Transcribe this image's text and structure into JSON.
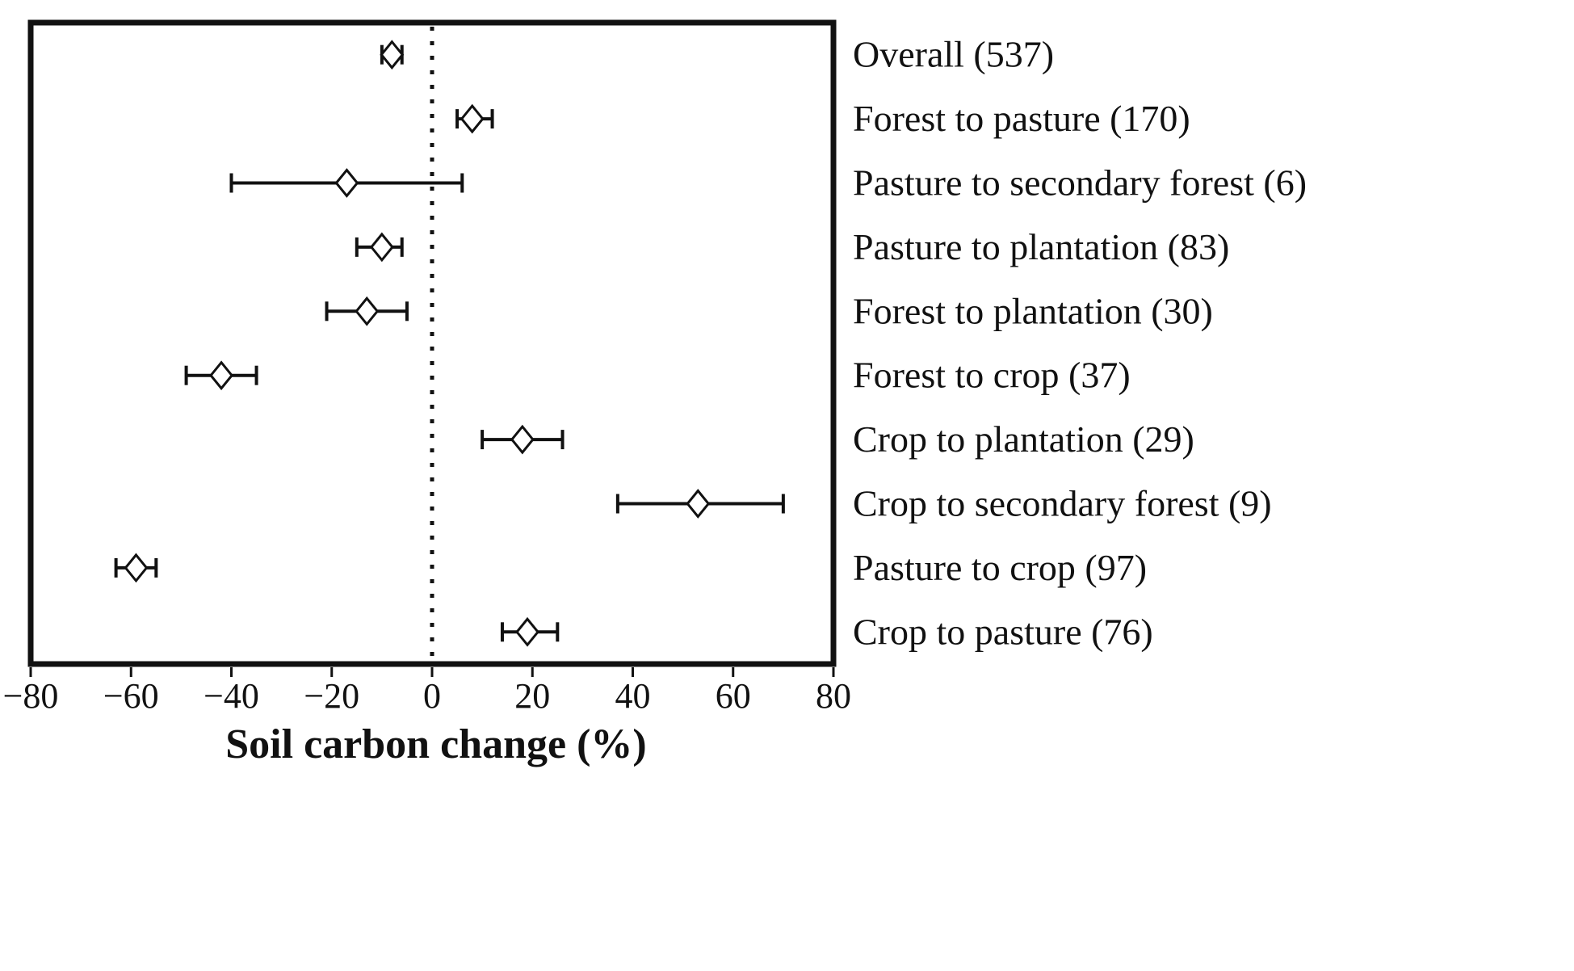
{
  "chart_data": {
    "type": "scatter",
    "subtype": "forest-plot-with-error-bars",
    "title": "",
    "xlabel": "Soil carbon change (%)",
    "ylabel": "",
    "xlim": [
      -80,
      80
    ],
    "x_ticks": [
      -80,
      -60,
      -40,
      -20,
      0,
      20,
      40,
      60,
      80
    ],
    "reference_line_x": 0,
    "grid": false,
    "legend": "none",
    "marker": "open-diamond",
    "colors": {
      "foreground": "#111111",
      "background": "#ffffff"
    },
    "series": [
      {
        "label": "Overall (537)",
        "value": -8,
        "ci_low": -10,
        "ci_high": -6
      },
      {
        "label": "Forest to pasture (170)",
        "value": 8,
        "ci_low": 5,
        "ci_high": 12
      },
      {
        "label": "Pasture to secondary forest (6)",
        "value": -17,
        "ci_low": -40,
        "ci_high": 6
      },
      {
        "label": "Pasture to plantation (83)",
        "value": -10,
        "ci_low": -15,
        "ci_high": -6
      },
      {
        "label": "Forest to plantation (30)",
        "value": -13,
        "ci_low": -21,
        "ci_high": -5
      },
      {
        "label": "Forest to crop (37)",
        "value": -42,
        "ci_low": -49,
        "ci_high": -35
      },
      {
        "label": "Crop to plantation (29)",
        "value": 18,
        "ci_low": 10,
        "ci_high": 26
      },
      {
        "label": "Crop to secondary forest (9)",
        "value": 53,
        "ci_low": 37,
        "ci_high": 70
      },
      {
        "label": "Pasture to crop (97)",
        "value": -59,
        "ci_low": -63,
        "ci_high": -55
      },
      {
        "label": "Crop to pasture (76)",
        "value": 19,
        "ci_low": 14,
        "ci_high": 25
      }
    ]
  }
}
